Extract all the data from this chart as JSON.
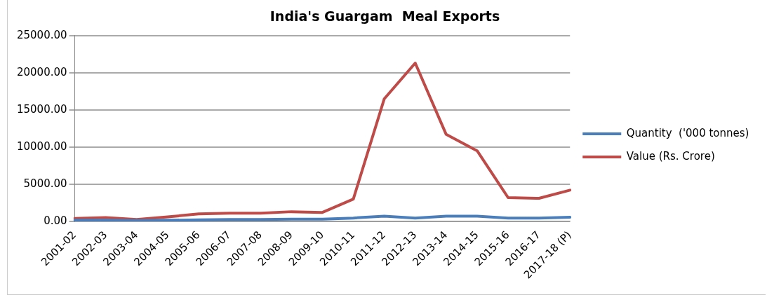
{
  "chart_data": {
    "type": "line",
    "title": "India's Guargam  Meal Exports",
    "categories": [
      "2001-02",
      "2002-03",
      "2003-04",
      "2004-05",
      "2005-06",
      "2006-07",
      "2007-08",
      "2008-09",
      "2009-10",
      "2010-11",
      "2011-12",
      "2012-13",
      "2013-14",
      "2014-15",
      "2015-16",
      "2016-17",
      "2017-18 (P)"
    ],
    "series": [
      {
        "name": "Quantity  ('000 tonnes)",
        "color": "#4a7ebb",
        "values": [
          150,
          150,
          100,
          150,
          200,
          250,
          250,
          300,
          300,
          450,
          700,
          450,
          700,
          700,
          450,
          450,
          550
        ]
      },
      {
        "name": "Value (Rs. Crore)",
        "color": "#be4b48",
        "values": [
          400,
          500,
          250,
          600,
          1000,
          1100,
          1100,
          1300,
          1200,
          3000,
          16500,
          21300,
          11700,
          9500,
          3200,
          3100,
          4200
        ]
      }
    ],
    "ylim": [
      0,
      25000
    ],
    "yticks": [
      {
        "value": 0,
        "label": "0.00"
      },
      {
        "value": 5000,
        "label": "5000.00"
      },
      {
        "value": 10000,
        "label": "10000.00"
      },
      {
        "value": 15000,
        "label": "15000.00"
      },
      {
        "value": 20000,
        "label": "20000.00"
      },
      {
        "value": 25000,
        "label": "25000.00"
      }
    ],
    "grid": "y",
    "legend": "right",
    "marker": "none",
    "line_style": "solid"
  }
}
